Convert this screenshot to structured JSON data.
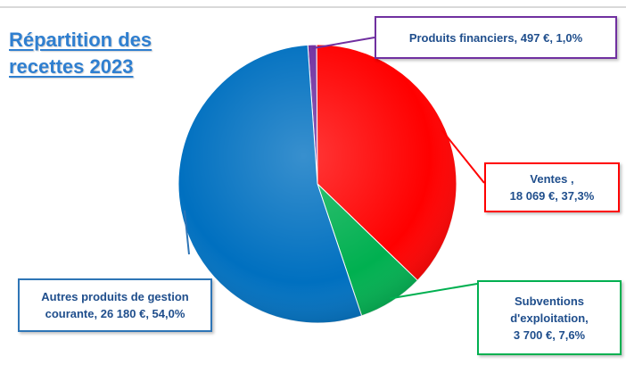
{
  "title": {
    "line1": "Répartition des",
    "line2": "recettes 2023"
  },
  "chart_data": {
    "type": "pie",
    "title": "Répartition des recettes 2023",
    "unit": "€",
    "slices": [
      {
        "name": "Produits financiers",
        "value": 497,
        "percent": 1.0,
        "color": "#7030a0",
        "label_lines": [
          "Produits financiers,  497 €, 1,0%"
        ]
      },
      {
        "name": "Ventes",
        "value": 18069,
        "percent": 37.3,
        "color": "#ff0000",
        "label_lines": [
          "Ventes ,",
          "18 069 €, 37,3%"
        ]
      },
      {
        "name": "Subventions d'exploitation",
        "value": 3700,
        "percent": 7.6,
        "color": "#00b050",
        "label_lines": [
          "Subventions",
          "d'exploitation,",
          "3 700 €, 7,6%"
        ]
      },
      {
        "name": "Autres produits de gestion courante",
        "value": 26180,
        "percent": 54.0,
        "color": "#0070c0",
        "label_lines": [
          "Autres produits de gestion",
          "courante, 26 180 €, 54,0%"
        ]
      }
    ]
  }
}
